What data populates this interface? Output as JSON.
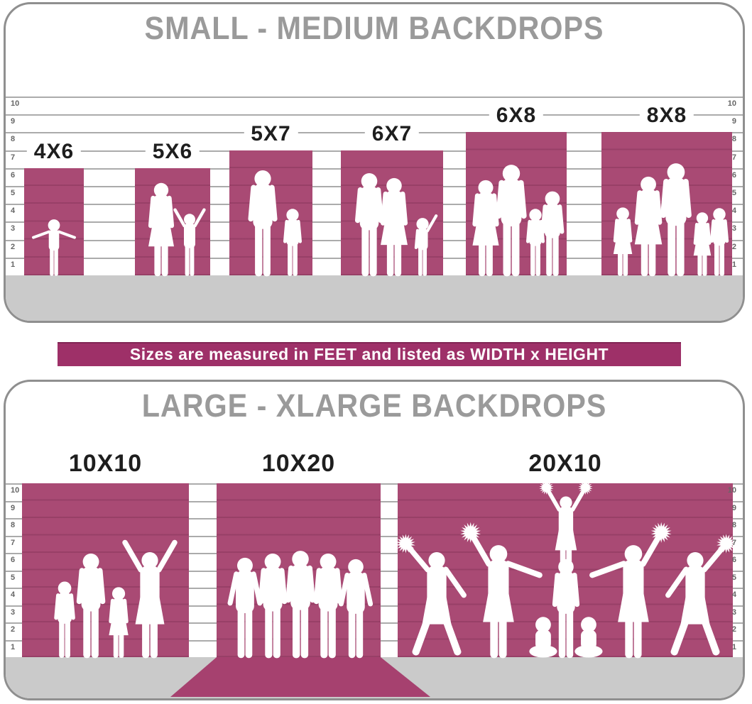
{
  "small_section": {
    "title": "SMALL - MEDIUM BACKDROPS",
    "sizes": [
      {
        "label": "4X6",
        "width_ft": 4,
        "height_ft": 6
      },
      {
        "label": "5X6",
        "width_ft": 5,
        "height_ft": 6
      },
      {
        "label": "5X7",
        "width_ft": 5,
        "height_ft": 7
      },
      {
        "label": "6X7",
        "width_ft": 6,
        "height_ft": 7
      },
      {
        "label": "6X8",
        "width_ft": 6,
        "height_ft": 8
      },
      {
        "label": "8X8",
        "width_ft": 8,
        "height_ft": 8
      }
    ]
  },
  "banner": {
    "text": "Sizes are measured in FEET and listed as WIDTH x HEIGHT"
  },
  "large_section": {
    "title": "LARGE - XLARGE BACKDROPS",
    "sizes": [
      {
        "label": "10X10",
        "width_ft": 10,
        "height_ft": 10
      },
      {
        "label": "10X20",
        "width_ft": 10,
        "height_ft": 20
      },
      {
        "label": "20X10",
        "width_ft": 20,
        "height_ft": 10
      }
    ]
  },
  "ruler": {
    "ticks": [
      "10",
      "9",
      "8",
      "7",
      "6",
      "5",
      "4",
      "3",
      "2",
      "1"
    ]
  },
  "colors": {
    "backdrop_pink": "#a94a74",
    "banner_magenta": "#9e3068",
    "carpet_pink": "#a6416f",
    "floor_gray": "#cacaca",
    "title_gray": "#9a9a9a",
    "label_dark": "#1e1e1e",
    "ruler_line_gray": "#ababab",
    "card_border_gray": "#8f8f8f"
  }
}
